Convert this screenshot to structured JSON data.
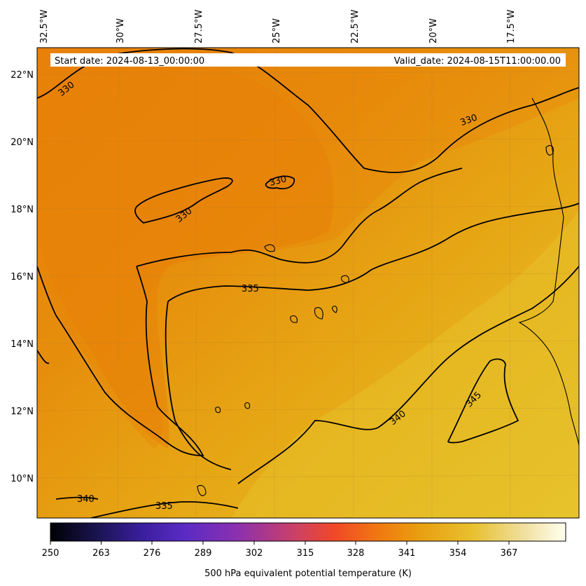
{
  "map": {
    "start_date": "Start date: 2024-08-13_00:00:00",
    "valid_date": "Valid_date: 2024-08-15T11:00:00.00",
    "lon_labels": [
      "32.5°W",
      "30°W",
      "27.5°W",
      "25°W",
      "22.5°W",
      "20°W",
      "17.5°W"
    ],
    "lat_labels": [
      "22°N",
      "20°N",
      "18°N",
      "16°N",
      "14°N",
      "12°N",
      "10°N"
    ],
    "contour_labels": [
      "330",
      "330",
      "330",
      "330",
      "335",
      "335",
      "340",
      "340",
      "345"
    ]
  },
  "colorbar": {
    "ticks": [
      "250",
      "263",
      "276",
      "289",
      "302",
      "315",
      "328",
      "341",
      "354",
      "367"
    ],
    "label": "500 hPa equivalent potential temperature (K)",
    "colors": [
      "#000004",
      "#1a1450",
      "#3b1fa0",
      "#5a2bc4",
      "#8a30b0",
      "#c8406a",
      "#f04828",
      "#f07a10",
      "#e8a010",
      "#e8c030",
      "#f0e0a0",
      "#fffff0"
    ]
  },
  "field_colors": {
    "cool": "#e8800a",
    "mid": "#e6a012",
    "warm": "#e6c22a"
  }
}
